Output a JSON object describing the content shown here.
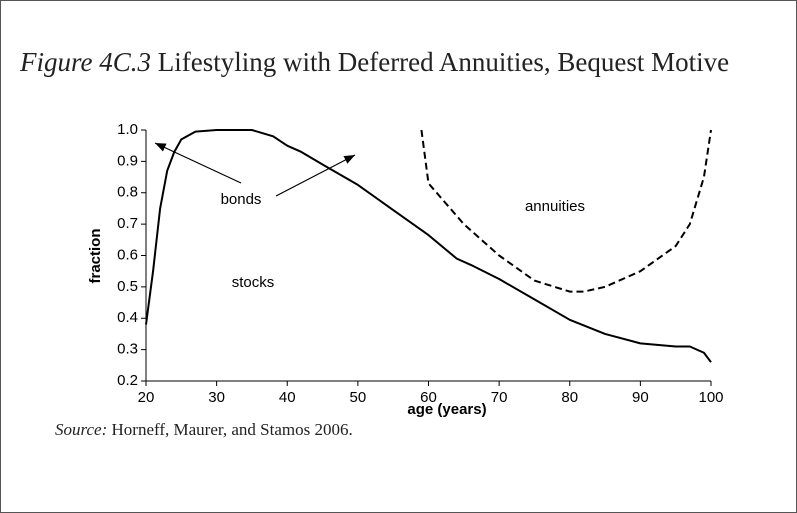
{
  "chart_data": {
    "type": "line",
    "figure_label": "Figure 4C.3",
    "title": "Lifestyling with Deferred Annuities, Bequest Motive",
    "xlabel": "age (years)",
    "ylabel": "fraction",
    "source_label": "Source:",
    "source": "Horneff, Maurer, and Stamos 2006.",
    "xlim": [
      20,
      100
    ],
    "ylim": [
      0.2,
      1.0
    ],
    "xticks": [
      20,
      30,
      40,
      50,
      60,
      70,
      80,
      90,
      100
    ],
    "yticks": [
      0.2,
      0.3,
      0.4,
      0.5,
      0.6,
      0.7,
      0.8,
      0.9,
      {
        "value": 1.0,
        "label": "1.0"
      }
    ],
    "grid": false,
    "series": [
      {
        "color": "#000000",
        "dash": false,
        "x": [
          20,
          21,
          22,
          23,
          24,
          25,
          27,
          30,
          35,
          38,
          40,
          42,
          45,
          50,
          55,
          60,
          64,
          66,
          70,
          75,
          80,
          85,
          90,
          95,
          97,
          99,
          100
        ],
        "values": [
          0.38,
          0.55,
          0.75,
          0.87,
          0.93,
          0.97,
          0.995,
          1.0,
          1.0,
          0.98,
          0.95,
          0.93,
          0.89,
          0.825,
          0.745,
          0.665,
          0.59,
          0.57,
          0.525,
          0.46,
          0.395,
          0.35,
          0.32,
          0.31,
          0.31,
          0.29,
          0.26
        ]
      },
      {
        "color": "#000000",
        "dash": true,
        "x": [
          59,
          60,
          65,
          70,
          75,
          80,
          82,
          85,
          90,
          95,
          97,
          99,
          100
        ],
        "values": [
          1.0,
          0.83,
          0.7,
          0.6,
          0.52,
          0.485,
          0.485,
          0.5,
          0.55,
          0.63,
          0.7,
          0.85,
          1.0
        ]
      }
    ],
    "annotations": [
      "bonds",
      "stocks",
      "annuities"
    ]
  }
}
